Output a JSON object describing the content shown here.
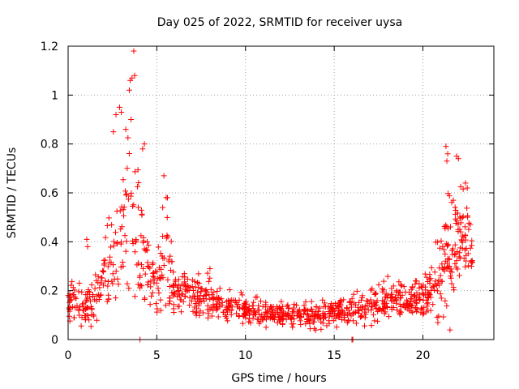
{
  "chart_data": {
    "type": "scatter",
    "title": "Day 025 of 2022, SRMTID for receiver uysa",
    "xlabel": "GPS time / hours",
    "ylabel": "SRMTID / TECUs",
    "xlim": [
      0,
      24
    ],
    "ylim": [
      0,
      1.2
    ],
    "x_ticks": [
      0,
      5,
      10,
      15,
      20
    ],
    "y_ticks": [
      0,
      0.2,
      0.4,
      0.6,
      0.8,
      1,
      1.2
    ],
    "x_tick_labels": [
      "0",
      "5",
      "10",
      "15",
      "20"
    ],
    "y_tick_labels": [
      "0",
      "0.2",
      "0.4",
      "0.6",
      "0.8",
      "1",
      "1.2"
    ],
    "grid": true,
    "marker": "+",
    "series": [
      {
        "name": "SRMTID",
        "color": "#ff0000",
        "trend": {
          "x": [
            0,
            0.5,
            1,
            1.5,
            2,
            2.5,
            3,
            3.5,
            4,
            4.5,
            5,
            5.5,
            6,
            7,
            8,
            9,
            10,
            11,
            12,
            13,
            14,
            15,
            16,
            17,
            18,
            19,
            20,
            20.5,
            21,
            21.5,
            22,
            22.5,
            22.8
          ],
          "y": [
            0.16,
            0.14,
            0.13,
            0.18,
            0.25,
            0.33,
            0.42,
            0.45,
            0.4,
            0.26,
            0.22,
            0.35,
            0.2,
            0.18,
            0.17,
            0.13,
            0.12,
            0.11,
            0.1,
            0.1,
            0.1,
            0.11,
            0.12,
            0.15,
            0.17,
            0.17,
            0.18,
            0.22,
            0.28,
            0.38,
            0.42,
            0.4,
            0.36
          ]
        },
        "spread": {
          "x": [
            0,
            1,
            2,
            2.5,
            3,
            3.5,
            4,
            4.5,
            5,
            5.5,
            6,
            7,
            8,
            9,
            12,
            15,
            17,
            19,
            20,
            21,
            21.5,
            22,
            22.8
          ],
          "y": [
            0.05,
            0.05,
            0.09,
            0.15,
            0.22,
            0.25,
            0.18,
            0.08,
            0.08,
            0.15,
            0.05,
            0.05,
            0.06,
            0.04,
            0.03,
            0.04,
            0.05,
            0.05,
            0.06,
            0.12,
            0.18,
            0.15,
            0.06
          ]
        },
        "highlights": [
          {
            "x": 3.7,
            "y": 1.18
          },
          {
            "x": 3.6,
            "y": 1.07
          },
          {
            "x": 3.5,
            "y": 1.06
          },
          {
            "x": 3.75,
            "y": 1.08
          },
          {
            "x": 3.45,
            "y": 1.02
          },
          {
            "x": 2.9,
            "y": 0.95
          },
          {
            "x": 3.0,
            "y": 0.93
          },
          {
            "x": 2.7,
            "y": 0.92
          },
          {
            "x": 2.55,
            "y": 0.85
          },
          {
            "x": 3.55,
            "y": 0.9
          },
          {
            "x": 3.25,
            "y": 0.86
          },
          {
            "x": 4.3,
            "y": 0.8
          },
          {
            "x": 4.2,
            "y": 0.78
          },
          {
            "x": 5.4,
            "y": 0.67
          },
          {
            "x": 5.6,
            "y": 0.58
          },
          {
            "x": 21.3,
            "y": 0.79
          },
          {
            "x": 21.4,
            "y": 0.76
          },
          {
            "x": 21.35,
            "y": 0.73
          },
          {
            "x": 21.9,
            "y": 0.75
          },
          {
            "x": 22.0,
            "y": 0.74
          },
          {
            "x": 22.4,
            "y": 0.64
          },
          {
            "x": 22.5,
            "y": 0.62
          },
          {
            "x": 1.05,
            "y": 0.41
          },
          {
            "x": 1.1,
            "y": 0.38
          },
          {
            "x": 4.05,
            "y": 0.0
          },
          {
            "x": 16.0,
            "y": 0.0
          },
          {
            "x": 16.05,
            "y": 0.0
          }
        ]
      }
    ]
  }
}
